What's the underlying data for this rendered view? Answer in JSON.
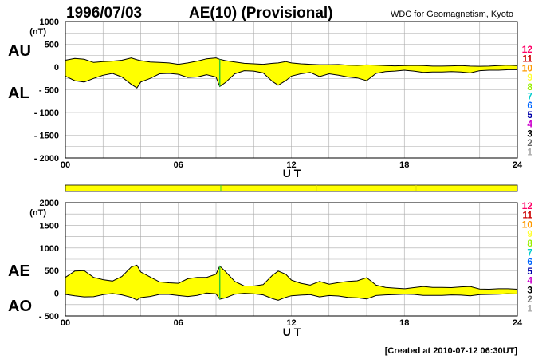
{
  "header": {
    "date": "1996/07/03",
    "title": "AE(10) (Provisional)",
    "source": "WDC for Geomagnetism, Kyoto"
  },
  "footer": {
    "created": "[Created at 2010-07-12 06:30UT]"
  },
  "colors": {
    "fill": "#ffff00",
    "marker": "#33cc33",
    "grid": "#aaaaaa",
    "line": "#000000"
  },
  "station_scale": {
    "labels": [
      "12",
      "11",
      "10",
      "9",
      "8",
      "7",
      "6",
      "5",
      "4",
      "3",
      "2",
      "1"
    ],
    "colors": [
      "#ff0066",
      "#cc0000",
      "#ff9900",
      "#ffff33",
      "#99ee00",
      "#00cccc",
      "#0066ff",
      "#0000aa",
      "#cc00cc",
      "#000000",
      "#666666",
      "#aaaaaa"
    ]
  },
  "chart_data": [
    {
      "type": "area",
      "panel": "AU/AL",
      "unit_label": "(nT)",
      "xlabel": "U T",
      "ylabel_top": "AU",
      "ylabel_bottom": "AL",
      "xlim": [
        0,
        24
      ],
      "ylim": [
        -2000,
        1000
      ],
      "xticks": [
        "00",
        "06",
        "12",
        "18",
        "24"
      ],
      "yticks": [
        "1000",
        "500",
        "0",
        "- 500",
        "- 1000",
        "- 1500",
        "- 2000"
      ],
      "ytick_values": [
        1000,
        500,
        0,
        -500,
        -1000,
        -1500,
        -2000
      ],
      "grid": true,
      "x": [
        0,
        0.5,
        1,
        1.5,
        2,
        2.5,
        3,
        3.5,
        3.8,
        4,
        4.5,
        5,
        5.5,
        6,
        6.5,
        7,
        7.5,
        8,
        8.2,
        8.5,
        9,
        9.5,
        10,
        10.5,
        11,
        11.3,
        11.7,
        12,
        12.5,
        13,
        13.5,
        14,
        14.5,
        15,
        15.5,
        16,
        16.5,
        17,
        17.5,
        18,
        18.5,
        19,
        19.5,
        20,
        20.5,
        21,
        21.5,
        22,
        22.5,
        23,
        23.5,
        24
      ],
      "series": [
        {
          "name": "AU",
          "values": [
            150,
            190,
            170,
            100,
            120,
            130,
            150,
            200,
            160,
            140,
            110,
            100,
            90,
            60,
            90,
            130,
            180,
            200,
            170,
            140,
            110,
            80,
            70,
            60,
            80,
            90,
            120,
            90,
            70,
            60,
            50,
            50,
            55,
            40,
            35,
            45,
            40,
            30,
            25,
            30,
            35,
            30,
            20,
            20,
            25,
            30,
            20,
            15,
            20,
            30,
            40,
            30
          ]
        },
        {
          "name": "AL",
          "values": [
            -200,
            -300,
            -330,
            -250,
            -180,
            -140,
            -220,
            -380,
            -460,
            -330,
            -250,
            -150,
            -140,
            -160,
            -230,
            -220,
            -170,
            -220,
            -430,
            -340,
            -150,
            -80,
            -90,
            -130,
            -320,
            -400,
            -300,
            -200,
            -150,
            -120,
            -210,
            -150,
            -180,
            -220,
            -240,
            -300,
            -140,
            -100,
            -90,
            -70,
            -90,
            -120,
            -110,
            -110,
            -100,
            -110,
            -130,
            -80,
            -70,
            -70,
            -60,
            -60
          ]
        }
      ]
    },
    {
      "type": "area",
      "panel": "AE/AO",
      "unit_label": "(nT)",
      "xlabel": "U T",
      "ylabel_top": "AE",
      "ylabel_bottom": "AO",
      "xlim": [
        0,
        24
      ],
      "ylim": [
        -500,
        2000
      ],
      "xticks": [
        "00",
        "06",
        "12",
        "18",
        "24"
      ],
      "yticks": [
        "2000",
        "1500",
        "1000",
        "500",
        "0",
        "- 500"
      ],
      "ytick_values": [
        2000,
        1500,
        1000,
        500,
        0,
        -500
      ],
      "grid": true,
      "x": [
        0,
        0.5,
        1,
        1.5,
        2,
        2.5,
        3,
        3.5,
        3.8,
        4,
        4.5,
        5,
        5.5,
        6,
        6.5,
        7,
        7.5,
        8,
        8.2,
        8.5,
        9,
        9.5,
        10,
        10.5,
        11,
        11.3,
        11.7,
        12,
        12.5,
        13,
        13.5,
        14,
        14.5,
        15,
        15.5,
        16,
        16.5,
        17,
        17.5,
        18,
        18.5,
        19,
        19.5,
        20,
        20.5,
        21,
        21.5,
        22,
        22.5,
        23,
        23.5,
        24
      ],
      "series": [
        {
          "name": "AE",
          "values": [
            350,
            490,
            500,
            350,
            300,
            270,
            370,
            580,
            620,
            470,
            360,
            250,
            230,
            220,
            320,
            350,
            350,
            420,
            600,
            480,
            260,
            160,
            160,
            190,
            400,
            490,
            420,
            290,
            220,
            180,
            260,
            200,
            235,
            260,
            275,
            345,
            180,
            130,
            115,
            100,
            125,
            150,
            130,
            130,
            125,
            140,
            150,
            95,
            90,
            100,
            100,
            90
          ]
        },
        {
          "name": "AO",
          "values": [
            -25,
            -55,
            -80,
            -75,
            -30,
            -5,
            -35,
            -90,
            -150,
            -95,
            -70,
            -25,
            -25,
            -50,
            -70,
            -45,
            5,
            -10,
            -130,
            -100,
            -20,
            0,
            -10,
            -35,
            -120,
            -155,
            -90,
            -55,
            -40,
            -30,
            -80,
            -50,
            -60,
            -90,
            -100,
            -125,
            -50,
            -35,
            -30,
            -20,
            -25,
            -45,
            -45,
            -45,
            -35,
            -40,
            -55,
            -30,
            -25,
            -20,
            -10,
            -15
          ]
        }
      ]
    }
  ]
}
